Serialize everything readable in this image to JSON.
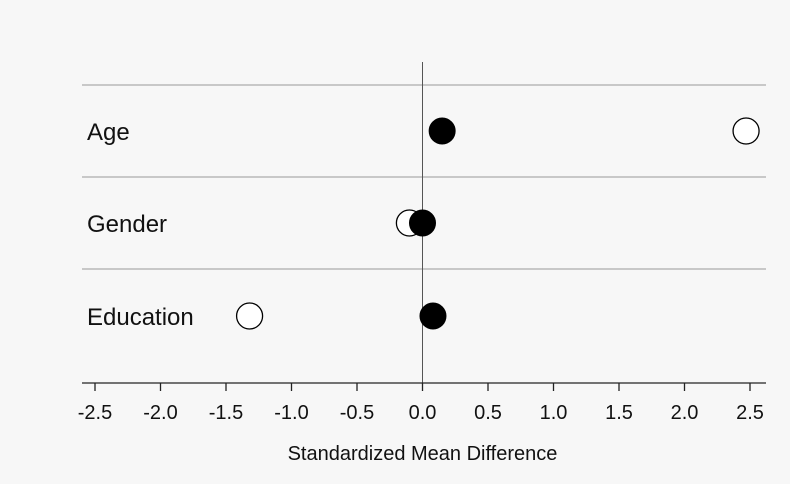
{
  "chart_data": {
    "type": "scatter",
    "title": "",
    "xlabel": "Standardized Mean Difference",
    "ylabel": "",
    "xlim": [
      -2.5,
      2.5
    ],
    "x_ticks": [
      "-2.5",
      "-2.0",
      "-1.5",
      "-1.0",
      "-0.5",
      "0.0",
      "0.5",
      "1.0",
      "1.5",
      "2.0",
      "2.5"
    ],
    "categories": [
      "Age",
      "Gender",
      "Education"
    ],
    "series": [
      {
        "marker": "open-circle",
        "values": [
          2.47,
          -0.1,
          -1.32
        ]
      },
      {
        "marker": "filled-circle",
        "values": [
          0.15,
          0.0,
          0.08
        ]
      }
    ],
    "grid": "horizontal separators between categories",
    "reference_line": 0.0,
    "legend": "none"
  }
}
